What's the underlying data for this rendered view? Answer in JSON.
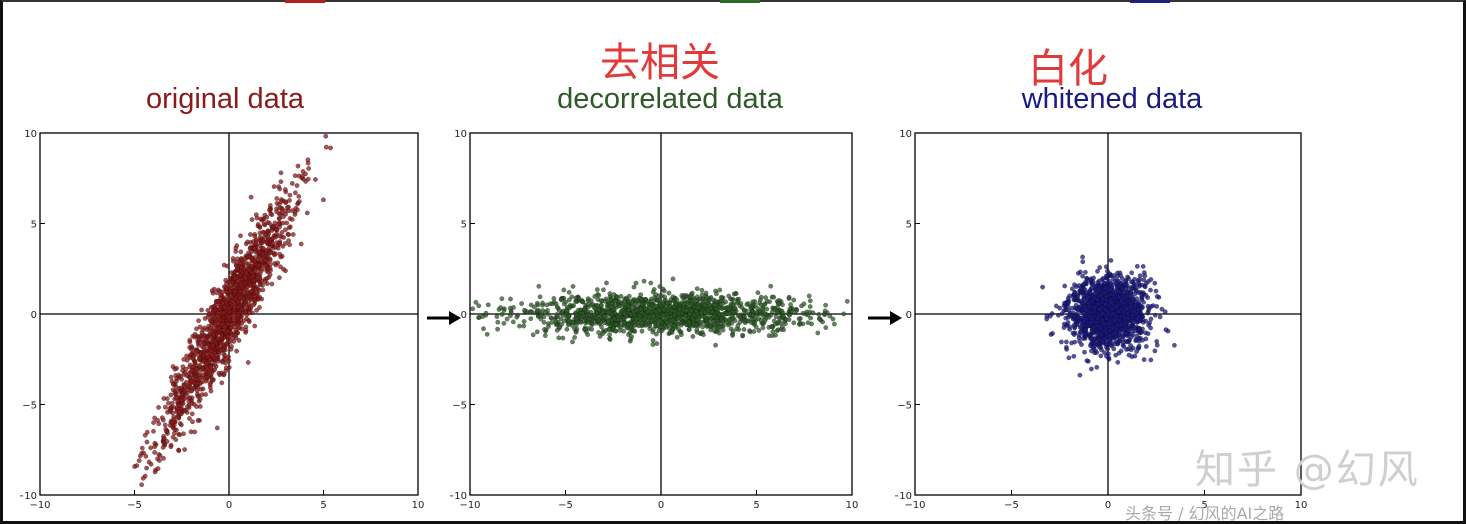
{
  "headings": {
    "decorrelate_cn": "去相关",
    "whiten_cn": "白化"
  },
  "watermarks": {
    "zhihu": "知乎 @幻风",
    "toutiao": "头条号 / 幻风的AI之路"
  },
  "chart_data": [
    {
      "type": "scatter",
      "title": "original data",
      "color": "#8b1a1a",
      "xlim": [
        -10,
        10
      ],
      "ylim": [
        -10,
        10
      ],
      "xticks": [
        -10,
        -5,
        0,
        5,
        10
      ],
      "yticks": [
        10,
        5,
        0,
        -5,
        -10
      ],
      "distribution": {
        "mean": [
          0,
          0
        ],
        "std_major": 3.8,
        "std_minor": 0.55,
        "angle_deg": 63,
        "n": 1500
      },
      "grid": false
    },
    {
      "type": "scatter",
      "title": "decorrelated data",
      "color": "#2d5a27",
      "xlim": [
        -10,
        10
      ],
      "ylim": [
        -10,
        10
      ],
      "xticks": [
        -10,
        -5,
        0,
        5,
        10
      ],
      "yticks": [
        10,
        5,
        0,
        -5,
        -10
      ],
      "distribution": {
        "mean": [
          0,
          0
        ],
        "std_major": 3.8,
        "std_minor": 0.55,
        "angle_deg": 0,
        "n": 1500
      },
      "grid": false
    },
    {
      "type": "scatter",
      "title": "whitened data",
      "color": "#1a1a80",
      "xlim": [
        -10,
        10
      ],
      "ylim": [
        -10,
        10
      ],
      "xticks": [
        -10,
        -5,
        0,
        5,
        10
      ],
      "yticks": [
        10,
        5,
        0,
        -5,
        -10
      ],
      "distribution": {
        "mean": [
          0,
          0
        ],
        "std_major": 1.0,
        "std_minor": 1.0,
        "angle_deg": 0,
        "n": 1500
      },
      "grid": false
    }
  ]
}
